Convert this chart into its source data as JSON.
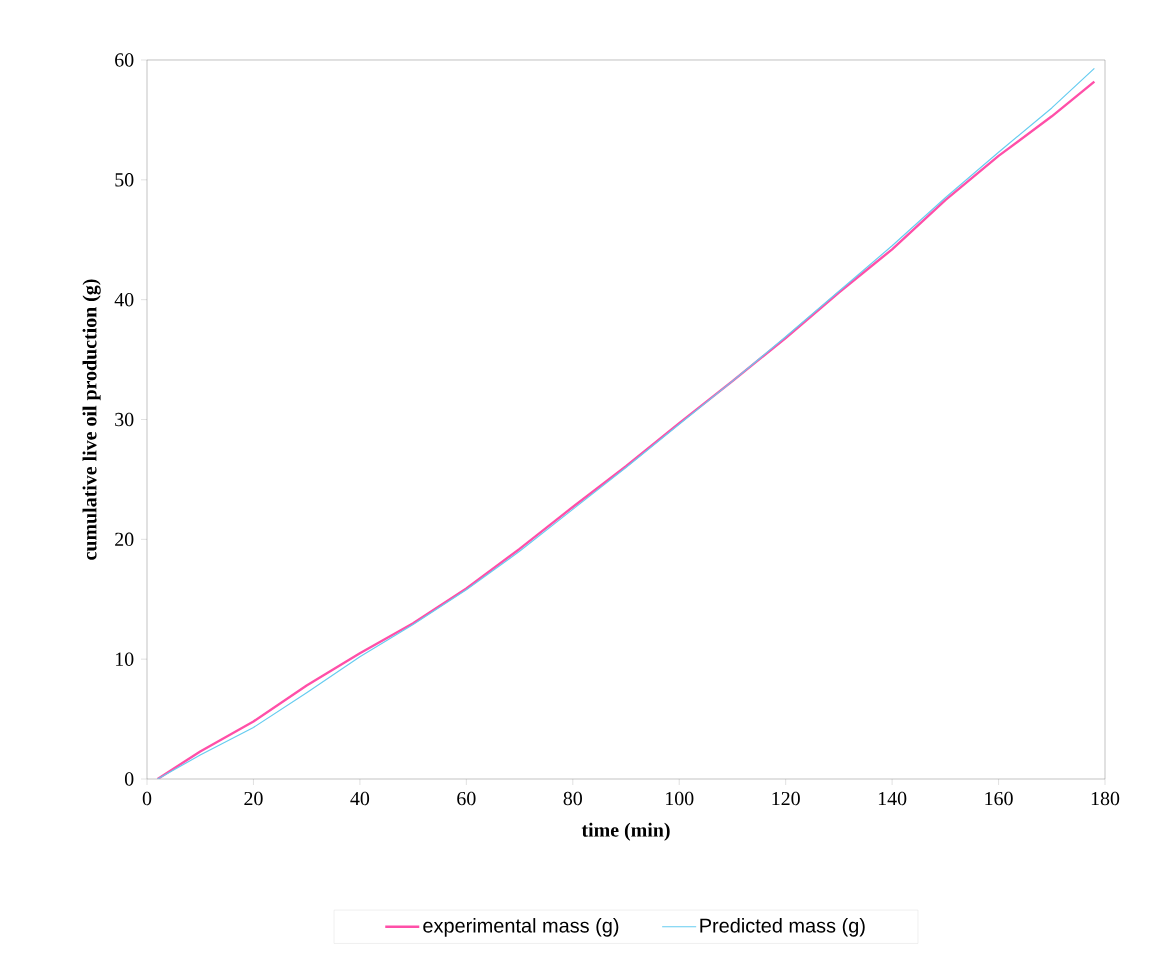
{
  "chart_data": {
    "type": "line",
    "xlabel": "time (min)",
    "ylabel": "cumulative live oil production (g)",
    "xlim": [
      0,
      180
    ],
    "ylim": [
      0,
      60
    ],
    "xticks": [
      0,
      20,
      40,
      60,
      80,
      100,
      120,
      140,
      160,
      180
    ],
    "yticks": [
      0,
      10,
      20,
      30,
      40,
      50,
      60
    ],
    "grid": false,
    "legend": "bottom",
    "marker": "none",
    "line_style": "solid",
    "series": [
      {
        "name": "experimental mass (g)",
        "color": "#ff4fa8",
        "x": [
          2,
          10,
          20,
          30,
          40,
          50,
          60,
          70,
          80,
          90,
          100,
          110,
          120,
          130,
          140,
          150,
          160,
          170,
          178
        ],
        "values": [
          0,
          2.3,
          4.8,
          7.8,
          10.5,
          13,
          15.9,
          19.2,
          22.7,
          26.1,
          29.7,
          33.2,
          36.8,
          40.6,
          44.2,
          48.3,
          52,
          55.3,
          58.2
        ]
      },
      {
        "name": "Predicted mass (g)",
        "color": "#66ccf0",
        "x": [
          2,
          10,
          20,
          30,
          40,
          50,
          60,
          70,
          80,
          90,
          100,
          110,
          120,
          130,
          140,
          150,
          160,
          170,
          178
        ],
        "values": [
          0,
          2.0,
          4.3,
          7.2,
          10.2,
          12.9,
          15.8,
          19.0,
          22.5,
          26.0,
          29.6,
          33.2,
          36.9,
          40.7,
          44.5,
          48.5,
          52.3,
          56.0,
          59.3
        ]
      }
    ]
  }
}
